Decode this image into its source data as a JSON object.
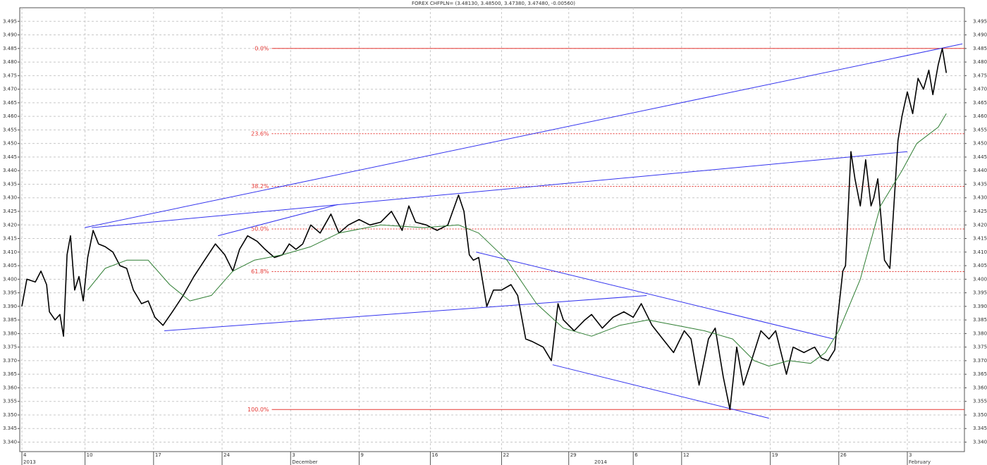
{
  "chart_data": {
    "type": "line",
    "title": "FOREX CHFPLN= (3.48130, 3.48500, 3.47380, 3.47480, -0.00560)",
    "xlim": [
      -0.16,
      70.15
    ],
    "ylim": [
      3.3365,
      3.5
    ],
    "grid": true,
    "xticks": [
      {
        "value": 0,
        "label": "4"
      },
      {
        "value": 4.7,
        "label": "10"
      },
      {
        "value": 9.8,
        "label": "17"
      },
      {
        "value": 14.9,
        "label": "24"
      },
      {
        "value": 20,
        "label": "3"
      },
      {
        "value": 25.1,
        "label": "9"
      },
      {
        "value": 30.4,
        "label": "16"
      },
      {
        "value": 35.7,
        "label": "22"
      },
      {
        "value": 40.7,
        "label": "29"
      },
      {
        "value": 45.5,
        "label": "6"
      },
      {
        "value": 49.1,
        "label": "12"
      },
      {
        "value": 55.7,
        "label": "19"
      },
      {
        "value": 60.8,
        "label": "26"
      },
      {
        "value": 65.9,
        "label": "3"
      }
    ],
    "periods": [
      {
        "value": 0,
        "label": "2013"
      },
      {
        "value": 20,
        "label": "December"
      },
      {
        "value": 42.5,
        "label": "2014"
      },
      {
        "value": 65.9,
        "label": "February"
      }
    ],
    "yticks": [
      {
        "value": 3.34,
        "label": "3.340"
      },
      {
        "value": 3.345,
        "label": "3.345"
      },
      {
        "value": 3.35,
        "label": "3.350"
      },
      {
        "value": 3.355,
        "label": "3.355"
      },
      {
        "value": 3.36,
        "label": "3.360"
      },
      {
        "value": 3.365,
        "label": "3.365"
      },
      {
        "value": 3.37,
        "label": "3.370"
      },
      {
        "value": 3.375,
        "label": "3.375"
      },
      {
        "value": 3.38,
        "label": "3.380"
      },
      {
        "value": 3.385,
        "label": "3.385"
      },
      {
        "value": 3.39,
        "label": "3.390"
      },
      {
        "value": 3.395,
        "label": "3.395"
      },
      {
        "value": 3.4,
        "label": "3.400"
      },
      {
        "value": 3.405,
        "label": "3.405"
      },
      {
        "value": 3.41,
        "label": "3.410"
      },
      {
        "value": 3.415,
        "label": "3.415"
      },
      {
        "value": 3.42,
        "label": "3.420"
      },
      {
        "value": 3.425,
        "label": "3.425"
      },
      {
        "value": 3.43,
        "label": "3.430"
      },
      {
        "value": 3.435,
        "label": "3.435"
      },
      {
        "value": 3.44,
        "label": "3.440"
      },
      {
        "value": 3.445,
        "label": "3.445"
      },
      {
        "value": 3.45,
        "label": "3.450"
      },
      {
        "value": 3.455,
        "label": "3.455"
      },
      {
        "value": 3.46,
        "label": "3.460"
      },
      {
        "value": 3.465,
        "label": "3.465"
      },
      {
        "value": 3.47,
        "label": "3.470"
      },
      {
        "value": 3.475,
        "label": "3.475"
      },
      {
        "value": 3.48,
        "label": "3.480"
      },
      {
        "value": 3.485,
        "label": "3.485"
      },
      {
        "value": 3.49,
        "label": "3.490"
      },
      {
        "value": 3.495,
        "label": "3.495"
      }
    ],
    "series": [
      {
        "color": "#000000",
        "width": 1.6,
        "x": [
          0,
          0.37,
          1.0,
          1.42,
          1.84,
          2.05,
          2.47,
          2.83,
          3.1,
          3.36,
          3.62,
          3.93,
          4.25,
          4.57,
          4.9,
          5.3,
          5.7,
          6.2,
          6.77,
          7.3,
          7.8,
          8.3,
          8.9,
          9.4,
          9.9,
          10.5,
          11.2,
          12.0,
          12.8,
          13.6,
          14.4,
          15.1,
          15.7,
          16.2,
          16.8,
          17.5,
          18.1,
          18.8,
          19.4,
          19.9,
          20.4,
          20.9,
          21.5,
          22.2,
          23.0,
          23.6,
          24.3,
          25.1,
          25.9,
          26.7,
          27.5,
          28.3,
          28.8,
          29.3,
          30.1,
          30.9,
          31.7,
          32.5,
          32.9,
          33.3,
          33.6,
          34.0,
          34.6,
          35.1,
          35.7,
          36.4,
          36.9,
          37.5,
          38.0,
          38.8,
          39.4,
          39.9,
          40.3,
          41.1,
          41.9,
          42.4,
          43.2,
          44.0,
          44.8,
          45.5,
          46.1,
          46.9,
          47.7,
          48.5,
          49.3,
          49.8,
          50.4,
          51.1,
          51.6,
          52.2,
          52.7,
          53.2,
          53.7,
          54.3,
          55.0,
          55.6,
          56.1,
          56.9,
          57.4,
          58.2,
          59.0,
          59.5,
          60.0,
          60.5,
          60.7,
          61.1,
          61.3,
          61.7,
          62.0,
          62.4,
          62.8,
          63.2,
          63.4,
          63.7,
          63.9,
          64.2,
          64.6,
          64.9,
          65.2,
          65.5,
          65.9,
          66.3,
          66.7,
          67.1,
          67.5,
          67.8,
          68.2,
          68.5,
          68.8
        ],
        "values": [
          3.39,
          3.4,
          3.399,
          3.403,
          3.398,
          3.388,
          3.385,
          3.387,
          3.379,
          3.409,
          3.416,
          3.396,
          3.401,
          3.392,
          3.408,
          3.418,
          3.413,
          3.412,
          3.41,
          3.405,
          3.404,
          3.396,
          3.391,
          3.392,
          3.386,
          3.383,
          3.388,
          3.394,
          3.401,
          3.407,
          3.413,
          3.409,
          3.403,
          3.411,
          3.416,
          3.414,
          3.411,
          3.408,
          3.409,
          3.413,
          3.411,
          3.413,
          3.42,
          3.417,
          3.424,
          3.417,
          3.42,
          3.422,
          3.42,
          3.421,
          3.425,
          3.418,
          3.427,
          3.421,
          3.42,
          3.418,
          3.42,
          3.431,
          3.425,
          3.409,
          3.407,
          3.408,
          3.39,
          3.396,
          3.396,
          3.398,
          3.394,
          3.378,
          3.377,
          3.375,
          3.37,
          3.391,
          3.385,
          3.381,
          3.385,
          3.387,
          3.382,
          3.386,
          3.388,
          3.386,
          3.391,
          3.383,
          3.378,
          3.373,
          3.381,
          3.378,
          3.361,
          3.378,
          3.382,
          3.364,
          3.352,
          3.375,
          3.361,
          3.37,
          3.381,
          3.378,
          3.381,
          3.365,
          3.375,
          3.373,
          3.375,
          3.371,
          3.37,
          3.374,
          3.385,
          3.403,
          3.405,
          3.447,
          3.437,
          3.427,
          3.444,
          3.427,
          3.43,
          3.437,
          3.425,
          3.407,
          3.404,
          3.427,
          3.451,
          3.46,
          3.469,
          3.461,
          3.474,
          3.47,
          3.477,
          3.468,
          3.479,
          3.485,
          3.476
        ]
      },
      {
        "color": "#2e7d32",
        "width": 1,
        "x": [
          4.9,
          6.2,
          7.8,
          9.4,
          11.0,
          12.5,
          14.1,
          15.7,
          17.3,
          19.4,
          21.5,
          23.6,
          26.7,
          29.9,
          32.5,
          34.0,
          36.1,
          38.3,
          40.3,
          42.4,
          44.5,
          46.6,
          48.7,
          50.8,
          52.9,
          54.5,
          55.6,
          57.1,
          58.7,
          59.8,
          60.8,
          62.4,
          63.9,
          65.5,
          66.6,
          68.2,
          68.8
        ],
        "values": [
          3.396,
          3.404,
          3.407,
          3.407,
          3.398,
          3.392,
          3.394,
          3.403,
          3.407,
          3.409,
          3.412,
          3.417,
          3.42,
          3.419,
          3.42,
          3.417,
          3.407,
          3.391,
          3.382,
          3.379,
          3.383,
          3.385,
          3.383,
          3.381,
          3.378,
          3.37,
          3.368,
          3.37,
          3.369,
          3.373,
          3.381,
          3.4,
          3.427,
          3.44,
          3.45,
          3.456,
          3.461
        ]
      }
    ],
    "levels_color": "#e53935",
    "levels_start": 18.6,
    "levels": [
      {
        "label": "0.0%",
        "value": 3.485,
        "dashed": false
      },
      {
        "label": "23.6%",
        "value": 3.4536,
        "dashed": true
      },
      {
        "label": "38.2%",
        "value": 3.4342,
        "dashed": true
      },
      {
        "label": "50.0%",
        "value": 3.4185,
        "dashed": true
      },
      {
        "label": "61.8%",
        "value": 3.4028,
        "dashed": true
      },
      {
        "label": "100.0%",
        "value": 3.352,
        "dashed": false
      }
    ],
    "trendlines_color": "#3333ee",
    "trendlines": [
      {
        "x": [
          4.67,
          70.0
        ],
        "y": [
          3.419,
          3.4867
        ]
      },
      {
        "x": [
          5.2,
          65.9
        ],
        "y": [
          3.419,
          3.447
        ]
      },
      {
        "x": [
          10.6,
          46.5
        ],
        "y": [
          3.381,
          3.394
        ]
      },
      {
        "x": [
          14.6,
          23.5
        ],
        "y": [
          3.416,
          3.4275
        ]
      },
      {
        "x": [
          33.8,
          60.4
        ],
        "y": [
          3.41,
          3.378
        ]
      },
      {
        "x": [
          39.5,
          55.6
        ],
        "y": [
          3.3685,
          3.3488
        ]
      }
    ]
  }
}
